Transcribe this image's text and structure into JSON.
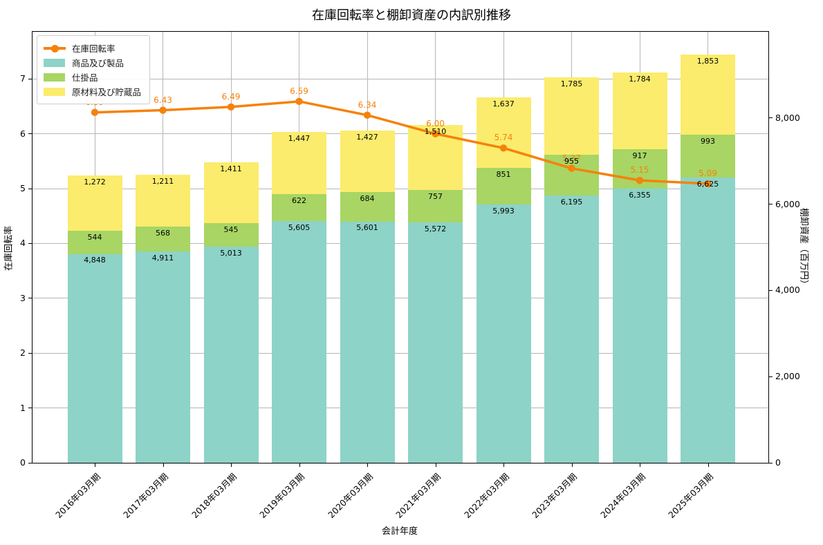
{
  "chart_data": {
    "type": "bar",
    "subtype": "stacked-bars-with-line-overlay",
    "title": "在庫回転率と棚卸資産の内訳別推移",
    "xlabel": "会計年度",
    "categories": [
      "2016年03月期",
      "2017年03月期",
      "2018年03月期",
      "2019年03月期",
      "2020年03月期",
      "2021年03月期",
      "2022年03月期",
      "2023年03月期",
      "2024年03月期",
      "2025年03月期"
    ],
    "bar_series": [
      {
        "name": "商品及び製品",
        "color": "#8dd3c7",
        "values": [
          4848,
          4911,
          5013,
          5605,
          5601,
          5572,
          5993,
          6195,
          6355,
          6625
        ]
      },
      {
        "name": "仕掛品",
        "color": "#a8d564",
        "values": [
          544,
          568,
          545,
          622,
          684,
          757,
          851,
          955,
          917,
          993
        ]
      },
      {
        "name": "原材料及び貯蔵品",
        "color": "#fbec6d",
        "values": [
          1272,
          1211,
          1411,
          1447,
          1427,
          1510,
          1637,
          1785,
          1784,
          1853
        ]
      }
    ],
    "line_series": {
      "name": "在庫回転率",
      "color": "#f5820b",
      "axis": "left",
      "values": [
        6.39,
        6.43,
        6.49,
        6.59,
        6.34,
        6.0,
        5.74,
        5.37,
        5.15,
        5.09
      ]
    },
    "left_axis": {
      "label": "在庫回転率",
      "ticks": [
        0,
        1,
        2,
        3,
        4,
        5,
        6,
        7
      ],
      "max": 7.86
    },
    "right_axis": {
      "label": "棚卸資産（百万円）",
      "ticks": [
        0,
        2000,
        4000,
        6000,
        8000
      ],
      "max": 10000
    },
    "legend": {
      "position": "upper-left",
      "entries": [
        {
          "label": "在庫回転率",
          "type": "line",
          "color": "#f5820b"
        },
        {
          "label": "商品及び製品",
          "type": "patch",
          "color": "#8dd3c7"
        },
        {
          "label": "仕掛品",
          "type": "patch",
          "color": "#a8d564"
        },
        {
          "label": "原材料及び貯蔵品",
          "type": "patch",
          "color": "#fbec6d"
        }
      ]
    },
    "grid": true,
    "gridline_color": "#b6b6b6"
  }
}
